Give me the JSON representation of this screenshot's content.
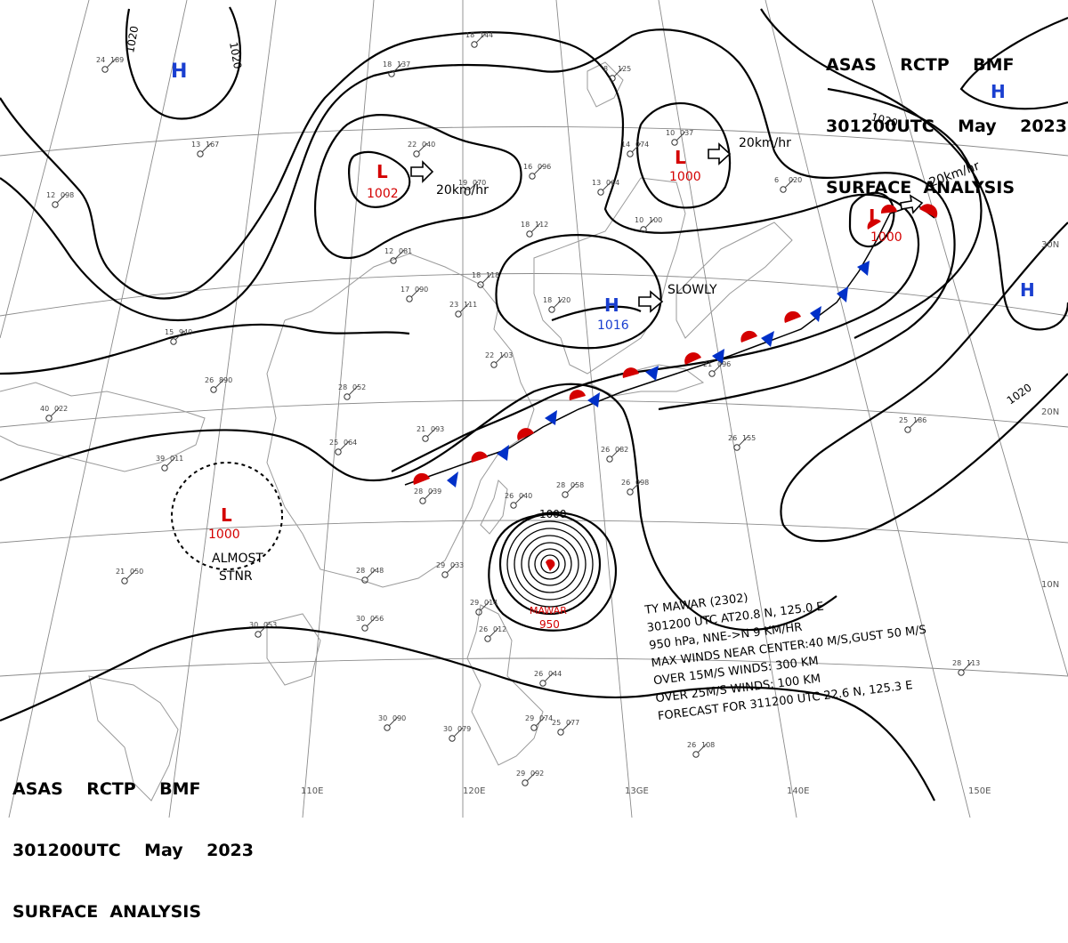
{
  "header": {
    "line1": "ASAS    RCTP    BMF",
    "line2": "301200UTC    May    2023",
    "line3": "SURFACE  ANALYSIS"
  },
  "isobars": {
    "label_1020": "1020",
    "label_1000": "1000"
  },
  "pressure_centers": {
    "h_nw": "H",
    "h_ne": "H",
    "h_e": "H",
    "h_center": "H",
    "h_center_value": "1016",
    "l_north": "L",
    "l_north_value": "1002",
    "l_north2": "L",
    "l_north2_value": "1000",
    "l_ne": "L",
    "l_ne_value": "1000",
    "l_west": "L",
    "l_west_value": "1000",
    "typhoon_name": "MAWAR",
    "typhoon_value": "950"
  },
  "motion": {
    "north": "20km/hr",
    "north2": "20km/hr",
    "ne": "20km/hr",
    "high": "SLOWLY",
    "almost1": "ALMOST",
    "almost2": "STNR"
  },
  "grid": {
    "lon_110": "110E",
    "lon_120": "120E",
    "lon_130": "13GE",
    "lon_140": "140E",
    "lon_150": "150E",
    "lat_30": "30N",
    "lat_20": "20N",
    "lat_10": "10N"
  },
  "typhoon_info": {
    "line1": "TY  MAWAR  (2302)",
    "line2": "301200 UTC  AT20.8 N, 125.0 E",
    "line3": "950 hPa, NNE->N  9 KM/HR",
    "line4": "MAX WINDS NEAR CENTER:40 M/S,GUST 50 M/S",
    "line5": "OVER 15M/S WINDS: 300 KM",
    "line6": "OVER 25M/S WINDS: 100 KM",
    "line7": "FORECAST FOR 311200 UTC 22.6 N, 125.3 E"
  },
  "stations": [
    {
      "t": "24",
      "p": "189"
    },
    {
      "t": "18",
      "p": "137"
    },
    {
      "t": "18",
      "p": "144"
    },
    {
      "t": "13",
      "p": "167"
    },
    {
      "t": "22",
      "p": "040"
    },
    {
      "t": "19",
      "p": "070"
    },
    {
      "t": "16",
      "p": "096"
    },
    {
      "t": "13",
      "p": "064"
    },
    {
      "t": "12",
      "p": "098"
    },
    {
      "t": "18",
      "p": "112"
    },
    {
      "t": "18",
      "p": "118"
    },
    {
      "t": "12",
      "p": "081"
    },
    {
      "t": "17",
      "p": "090"
    },
    {
      "t": "23",
      "p": "111"
    },
    {
      "t": "18",
      "p": "120"
    },
    {
      "t": "15",
      "p": "940"
    },
    {
      "t": "26",
      "p": "890"
    },
    {
      "t": "40",
      "p": "022"
    },
    {
      "t": "28",
      "p": "052"
    },
    {
      "t": "22",
      "p": "103"
    },
    {
      "t": "25",
      "p": "064"
    },
    {
      "t": "21",
      "p": "093"
    },
    {
      "t": "39",
      "p": "011"
    },
    {
      "t": "28",
      "p": "039"
    },
    {
      "t": "26",
      "p": "082"
    },
    {
      "t": "26",
      "p": "098"
    },
    {
      "t": "28",
      "p": "058"
    },
    {
      "t": "26",
      "p": "040"
    },
    {
      "t": "29",
      "p": "033"
    },
    {
      "t": "28",
      "p": "048"
    },
    {
      "t": "21",
      "p": "050"
    },
    {
      "t": "30",
      "p": "053"
    },
    {
      "t": "30",
      "p": "056"
    },
    {
      "t": "29",
      "p": "014"
    },
    {
      "t": "26",
      "p": "012"
    },
    {
      "t": "26",
      "p": "044"
    },
    {
      "t": "25",
      "p": "077"
    },
    {
      "t": "30",
      "p": "090"
    },
    {
      "t": "30",
      "p": "079"
    },
    {
      "t": "29",
      "p": "074"
    },
    {
      "t": "26",
      "p": "108"
    },
    {
      "t": "29",
      "p": "092"
    },
    {
      "t": "26",
      "p": "155"
    },
    {
      "t": "25",
      "p": "186"
    },
    {
      "t": "28",
      "p": "113"
    },
    {
      "t": "21",
      "p": "096"
    },
    {
      "t": "14",
      "p": "074"
    },
    {
      "t": "10",
      "p": "037"
    },
    {
      "t": "6",
      "p": "020"
    },
    {
      "t": "8",
      "p": "125"
    },
    {
      "t": "10",
      "p": "100"
    }
  ]
}
